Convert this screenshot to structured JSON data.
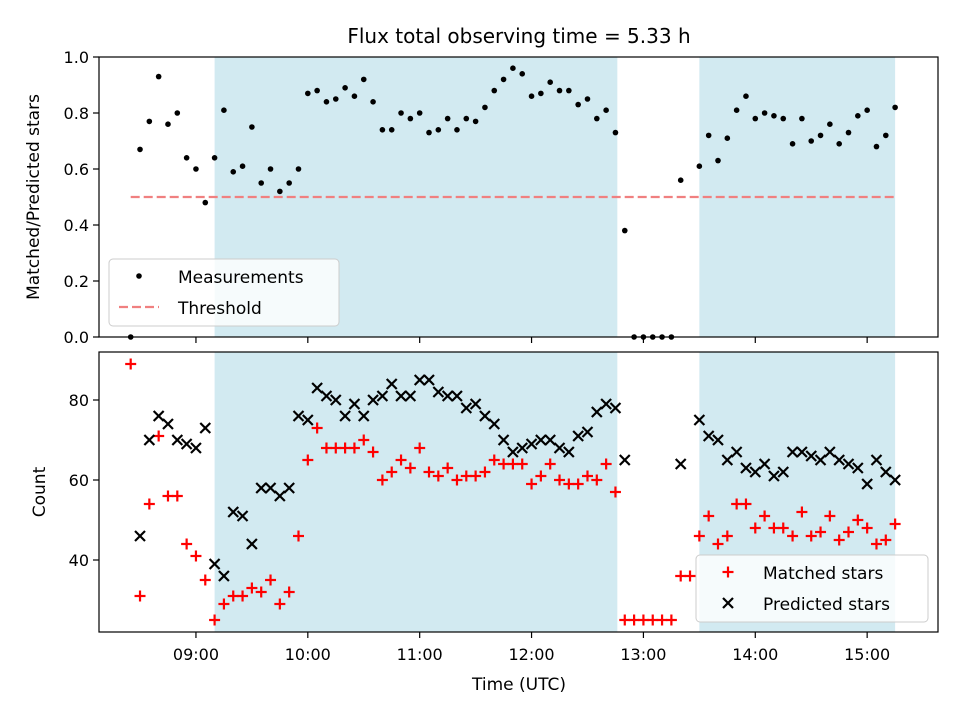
{
  "chart_data": [
    {
      "type": "scatter",
      "title": "Flux total observing time = 5.33 h",
      "xlabel": "",
      "ylabel": "Matched/Predicted stars",
      "ylim": [
        0,
        1.0
      ],
      "xlim": [
        "08:08",
        "15:38"
      ],
      "yticks": [
        "0.0",
        "0.2",
        "0.4",
        "0.6",
        "0.8",
        "1.0"
      ],
      "grid": false,
      "legend_position": "lower-left",
      "shaded_intervals": [
        [
          "09:10",
          "12:46"
        ],
        [
          "13:30",
          "15:15"
        ]
      ],
      "shade_color": "#add8e6",
      "threshold": {
        "name": "Threshold",
        "value": 0.5,
        "x_range": [
          "08:25",
          "15:15"
        ],
        "color": "#f08080"
      },
      "series": [
        {
          "name": "Measurements",
          "color": "#000000",
          "points": [
            [
              "08:25",
              0.0
            ],
            [
              "08:30",
              0.67
            ],
            [
              "08:35",
              0.77
            ],
            [
              "08:40",
              0.93
            ],
            [
              "08:45",
              0.76
            ],
            [
              "08:50",
              0.8
            ],
            [
              "08:55",
              0.64
            ],
            [
              "09:00",
              0.6
            ],
            [
              "09:05",
              0.48
            ],
            [
              "09:10",
              0.64
            ],
            [
              "09:15",
              0.81
            ],
            [
              "09:20",
              0.59
            ],
            [
              "09:25",
              0.61
            ],
            [
              "09:30",
              0.75
            ],
            [
              "09:35",
              0.55
            ],
            [
              "09:40",
              0.6
            ],
            [
              "09:45",
              0.52
            ],
            [
              "09:50",
              0.55
            ],
            [
              "09:55",
              0.6
            ],
            [
              "10:00",
              0.87
            ],
            [
              "10:05",
              0.88
            ],
            [
              "10:10",
              0.84
            ],
            [
              "10:15",
              0.85
            ],
            [
              "10:20",
              0.89
            ],
            [
              "10:25",
              0.86
            ],
            [
              "10:30",
              0.92
            ],
            [
              "10:35",
              0.84
            ],
            [
              "10:40",
              0.74
            ],
            [
              "10:45",
              0.74
            ],
            [
              "10:50",
              0.8
            ],
            [
              "10:55",
              0.78
            ],
            [
              "11:00",
              0.8
            ],
            [
              "11:05",
              0.73
            ],
            [
              "11:10",
              0.74
            ],
            [
              "11:15",
              0.78
            ],
            [
              "11:20",
              0.74
            ],
            [
              "11:25",
              0.78
            ],
            [
              "11:30",
              0.77
            ],
            [
              "11:35",
              0.82
            ],
            [
              "11:40",
              0.88
            ],
            [
              "11:45",
              0.92
            ],
            [
              "11:50",
              0.96
            ],
            [
              "11:55",
              0.94
            ],
            [
              "12:00",
              0.86
            ],
            [
              "12:05",
              0.87
            ],
            [
              "12:10",
              0.91
            ],
            [
              "12:15",
              0.88
            ],
            [
              "12:20",
              0.88
            ],
            [
              "12:25",
              0.83
            ],
            [
              "12:30",
              0.85
            ],
            [
              "12:35",
              0.78
            ],
            [
              "12:40",
              0.81
            ],
            [
              "12:45",
              0.73
            ],
            [
              "12:50",
              0.38
            ],
            [
              "12:55",
              0.0
            ],
            [
              "13:00",
              0.0
            ],
            [
              "13:05",
              0.0
            ],
            [
              "13:10",
              0.0
            ],
            [
              "13:15",
              0.0
            ],
            [
              "13:20",
              0.56
            ],
            [
              "13:30",
              0.61
            ],
            [
              "13:35",
              0.72
            ],
            [
              "13:40",
              0.63
            ],
            [
              "13:45",
              0.71
            ],
            [
              "13:50",
              0.81
            ],
            [
              "13:55",
              0.86
            ],
            [
              "14:00",
              0.78
            ],
            [
              "14:05",
              0.8
            ],
            [
              "14:10",
              0.79
            ],
            [
              "14:15",
              0.78
            ],
            [
              "14:20",
              0.69
            ],
            [
              "14:25",
              0.78
            ],
            [
              "14:30",
              0.7
            ],
            [
              "14:35",
              0.72
            ],
            [
              "14:40",
              0.76
            ],
            [
              "14:45",
              0.69
            ],
            [
              "14:50",
              0.73
            ],
            [
              "14:55",
              0.79
            ],
            [
              "15:00",
              0.81
            ],
            [
              "15:05",
              0.68
            ],
            [
              "15:10",
              0.72
            ],
            [
              "15:15",
              0.82
            ]
          ]
        }
      ]
    },
    {
      "type": "scatter",
      "title": "",
      "xlabel": "Time (UTC)",
      "ylabel": "Count",
      "ylim": [
        22,
        92
      ],
      "xlim": [
        "08:08",
        "15:38"
      ],
      "yticks": [
        "40",
        "60",
        "80"
      ],
      "xticks": [
        "09:00",
        "10:00",
        "11:00",
        "12:00",
        "13:00",
        "14:00",
        "15:00"
      ],
      "grid": false,
      "legend_position": "lower-right",
      "shaded_intervals": [
        [
          "09:10",
          "12:46"
        ],
        [
          "13:30",
          "15:15"
        ]
      ],
      "shade_color": "#add8e6",
      "series": [
        {
          "name": "Matched stars",
          "marker": "plus",
          "color": "#ff0000",
          "points": [
            [
              "08:25",
              89
            ],
            [
              "08:30",
              31
            ],
            [
              "08:35",
              54
            ],
            [
              "08:40",
              71
            ],
            [
              "08:45",
              56
            ],
            [
              "08:50",
              56
            ],
            [
              "08:55",
              44
            ],
            [
              "09:00",
              41
            ],
            [
              "09:05",
              35
            ],
            [
              "09:10",
              25
            ],
            [
              "09:15",
              29
            ],
            [
              "09:20",
              31
            ],
            [
              "09:25",
              31
            ],
            [
              "09:30",
              33
            ],
            [
              "09:35",
              32
            ],
            [
              "09:40",
              35
            ],
            [
              "09:45",
              29
            ],
            [
              "09:50",
              32
            ],
            [
              "09:55",
              46
            ],
            [
              "10:00",
              65
            ],
            [
              "10:05",
              73
            ],
            [
              "10:10",
              68
            ],
            [
              "10:15",
              68
            ],
            [
              "10:20",
              68
            ],
            [
              "10:25",
              68
            ],
            [
              "10:30",
              70
            ],
            [
              "10:35",
              67
            ],
            [
              "10:40",
              60
            ],
            [
              "10:45",
              62
            ],
            [
              "10:50",
              65
            ],
            [
              "10:55",
              63
            ],
            [
              "11:00",
              68
            ],
            [
              "11:05",
              62
            ],
            [
              "11:10",
              61
            ],
            [
              "11:15",
              63
            ],
            [
              "11:20",
              60
            ],
            [
              "11:25",
              61
            ],
            [
              "11:30",
              61
            ],
            [
              "11:35",
              62
            ],
            [
              "11:40",
              65
            ],
            [
              "11:45",
              64
            ],
            [
              "11:50",
              64
            ],
            [
              "11:55",
              64
            ],
            [
              "12:00",
              59
            ],
            [
              "12:05",
              61
            ],
            [
              "12:10",
              64
            ],
            [
              "12:15",
              60
            ],
            [
              "12:20",
              59
            ],
            [
              "12:25",
              59
            ],
            [
              "12:30",
              61
            ],
            [
              "12:35",
              60
            ],
            [
              "12:40",
              64
            ],
            [
              "12:45",
              57
            ],
            [
              "12:50",
              25
            ],
            [
              "12:55",
              25
            ],
            [
              "13:00",
              25
            ],
            [
              "13:05",
              25
            ],
            [
              "13:10",
              25
            ],
            [
              "13:15",
              25
            ],
            [
              "13:20",
              36
            ],
            [
              "13:25",
              36
            ],
            [
              "13:30",
              46
            ],
            [
              "13:35",
              51
            ],
            [
              "13:40",
              44
            ],
            [
              "13:45",
              46
            ],
            [
              "13:50",
              54
            ],
            [
              "13:55",
              54
            ],
            [
              "14:00",
              48
            ],
            [
              "14:05",
              51
            ],
            [
              "14:10",
              48
            ],
            [
              "14:15",
              48
            ],
            [
              "14:20",
              46
            ],
            [
              "14:25",
              52
            ],
            [
              "14:30",
              46
            ],
            [
              "14:35",
              47
            ],
            [
              "14:40",
              51
            ],
            [
              "14:45",
              45
            ],
            [
              "14:50",
              47
            ],
            [
              "14:55",
              50
            ],
            [
              "15:00",
              48
            ],
            [
              "15:05",
              44
            ],
            [
              "15:10",
              45
            ],
            [
              "15:15",
              49
            ]
          ]
        },
        {
          "name": "Predicted stars",
          "marker": "x",
          "color": "#000000",
          "points": [
            [
              "08:30",
              46
            ],
            [
              "08:35",
              70
            ],
            [
              "08:40",
              76
            ],
            [
              "08:45",
              74
            ],
            [
              "08:50",
              70
            ],
            [
              "08:55",
              69
            ],
            [
              "09:00",
              68
            ],
            [
              "09:05",
              73
            ],
            [
              "09:10",
              39
            ],
            [
              "09:15",
              36
            ],
            [
              "09:20",
              52
            ],
            [
              "09:25",
              51
            ],
            [
              "09:30",
              44
            ],
            [
              "09:35",
              58
            ],
            [
              "09:40",
              58
            ],
            [
              "09:45",
              56
            ],
            [
              "09:50",
              58
            ],
            [
              "09:55",
              76
            ],
            [
              "10:00",
              75
            ],
            [
              "10:05",
              83
            ],
            [
              "10:10",
              81
            ],
            [
              "10:15",
              80
            ],
            [
              "10:20",
              76
            ],
            [
              "10:25",
              79
            ],
            [
              "10:30",
              76
            ],
            [
              "10:35",
              80
            ],
            [
              "10:40",
              81
            ],
            [
              "10:45",
              84
            ],
            [
              "10:50",
              81
            ],
            [
              "10:55",
              81
            ],
            [
              "11:00",
              85
            ],
            [
              "11:05",
              85
            ],
            [
              "11:10",
              82
            ],
            [
              "11:15",
              81
            ],
            [
              "11:20",
              81
            ],
            [
              "11:25",
              78
            ],
            [
              "11:30",
              79
            ],
            [
              "11:35",
              76
            ],
            [
              "11:40",
              74
            ],
            [
              "11:45",
              70
            ],
            [
              "11:50",
              67
            ],
            [
              "11:55",
              68
            ],
            [
              "12:00",
              69
            ],
            [
              "12:05",
              70
            ],
            [
              "12:10",
              70
            ],
            [
              "12:15",
              68
            ],
            [
              "12:20",
              67
            ],
            [
              "12:25",
              71
            ],
            [
              "12:30",
              72
            ],
            [
              "12:35",
              77
            ],
            [
              "12:40",
              79
            ],
            [
              "12:45",
              78
            ],
            [
              "12:50",
              65
            ],
            [
              "13:20",
              64
            ],
            [
              "13:30",
              75
            ],
            [
              "13:35",
              71
            ],
            [
              "13:40",
              70
            ],
            [
              "13:45",
              65
            ],
            [
              "13:50",
              67
            ],
            [
              "13:55",
              63
            ],
            [
              "14:00",
              62
            ],
            [
              "14:05",
              64
            ],
            [
              "14:10",
              61
            ],
            [
              "14:15",
              62
            ],
            [
              "14:20",
              67
            ],
            [
              "14:25",
              67
            ],
            [
              "14:30",
              66
            ],
            [
              "14:35",
              65
            ],
            [
              "14:40",
              67
            ],
            [
              "14:45",
              65
            ],
            [
              "14:50",
              64
            ],
            [
              "14:55",
              63
            ],
            [
              "15:00",
              59
            ],
            [
              "15:05",
              65
            ],
            [
              "15:10",
              62
            ],
            [
              "15:15",
              60
            ]
          ]
        }
      ]
    }
  ]
}
